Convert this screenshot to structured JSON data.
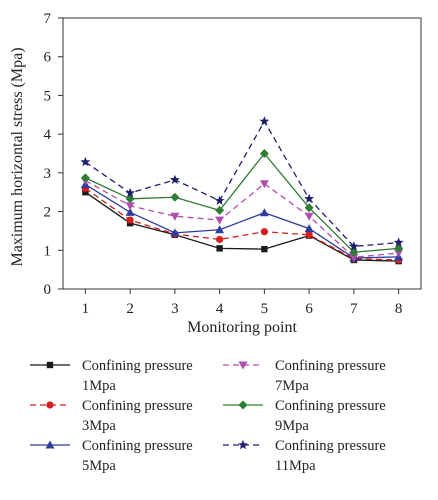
{
  "chart_data": {
    "type": "line",
    "title": "",
    "xlabel": "Monitoring point",
    "ylabel": "Maximum horizontal stress (Mpa)",
    "x": [
      1,
      2,
      3,
      4,
      5,
      6,
      7,
      8
    ],
    "xlim": [
      0.5,
      8.5
    ],
    "ylim": [
      0,
      7
    ],
    "yticks": [
      0,
      1,
      2,
      3,
      4,
      5,
      6,
      7
    ],
    "grid": false,
    "legend_position": "bottom",
    "series": [
      {
        "name_line1": "Confining pressure",
        "name_line2": "1Mpa",
        "color": "#1a1a1a",
        "marker": "square",
        "dash": "solid",
        "values": [
          2.5,
          1.7,
          1.4,
          1.05,
          1.03,
          1.38,
          0.75,
          0.72
        ]
      },
      {
        "name_line1": "Confining pressure",
        "name_line2": "3Mpa",
        "color": "#d62020",
        "marker": "circle",
        "dash": "dashed",
        "values": [
          2.6,
          1.78,
          1.42,
          1.28,
          1.48,
          1.4,
          0.78,
          0.75
        ]
      },
      {
        "name_line1": "Confining pressure",
        "name_line2": "5Mpa",
        "color": "#2e3c9e",
        "marker": "triangle-up",
        "dash": "solid",
        "values": [
          2.7,
          1.98,
          1.45,
          1.53,
          1.97,
          1.56,
          0.8,
          0.83
        ]
      },
      {
        "name_line1": "Confining pressure",
        "name_line2": "7Mpa",
        "color": "#b04fb0",
        "marker": "triangle-down",
        "dash": "dashed",
        "values": [
          2.8,
          2.15,
          1.88,
          1.78,
          2.72,
          1.88,
          0.82,
          0.93
        ]
      },
      {
        "name_line1": "Confining pressure",
        "name_line2": "9Mpa",
        "color": "#2e7d32",
        "marker": "diamond",
        "dash": "solid",
        "values": [
          2.87,
          2.33,
          2.37,
          2.03,
          3.5,
          2.1,
          0.95,
          1.05
        ]
      },
      {
        "name_line1": "Confining pressure",
        "name_line2": "11Mpa",
        "color": "#1f1f6e",
        "marker": "star",
        "dash": "dashed",
        "values": [
          3.28,
          2.48,
          2.82,
          2.28,
          4.33,
          2.33,
          1.1,
          1.2
        ]
      }
    ]
  }
}
